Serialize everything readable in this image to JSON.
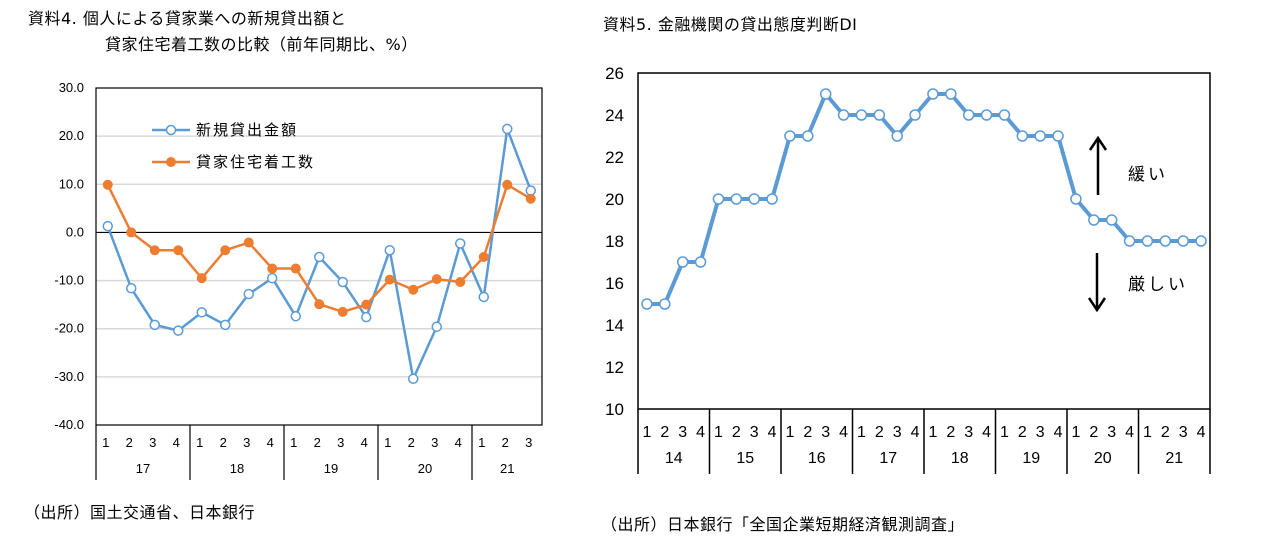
{
  "left_panel": {
    "title_line1": "資料4.  個人による貸家業への新規貸出額と",
    "title_line2": "貸家住宅着工数の比較（前年同期比、%）",
    "source": "（出所）国土交通省、日本銀行"
  },
  "right_panel": {
    "title": "資料5.  金融機関の貸出態度判断DI",
    "source": "（出所）日本銀行「全国企業短期経済観測調査」",
    "annotation_up": "緩い",
    "annotation_down": "厳しい"
  },
  "chart_data": [
    {
      "type": "line",
      "title": "個人による貸家業への新規貸出額と貸家住宅着工数の比較（前年同期比、%）",
      "xlabel": "",
      "ylabel": "",
      "ylim": [
        -40,
        30
      ],
      "yticks": [
        "30.0",
        "20.0",
        "10.0",
        "0.0",
        "-10.0",
        "-20.0",
        "-30.0",
        "-40.0"
      ],
      "grid": true,
      "legend_position": "upper-left inside",
      "years": [
        "17",
        "18",
        "19",
        "20",
        "21"
      ],
      "categories": [
        "17Q1",
        "17Q2",
        "17Q3",
        "17Q4",
        "18Q1",
        "18Q2",
        "18Q3",
        "18Q4",
        "19Q1",
        "19Q2",
        "19Q3",
        "19Q4",
        "20Q1",
        "20Q2",
        "20Q3",
        "20Q4",
        "21Q1",
        "21Q2",
        "21Q3"
      ],
      "quarter_labels": [
        "1",
        "2",
        "3",
        "4",
        "1",
        "2",
        "3",
        "4",
        "1",
        "2",
        "3",
        "4",
        "1",
        "2",
        "3",
        "4",
        "1",
        "2",
        "3"
      ],
      "series": [
        {
          "name": "新規貸出金額",
          "color": "#5B9BD5",
          "marker": "open-circle",
          "values": [
            1.3,
            -11.6,
            -19.2,
            -20.4,
            -16.6,
            -19.2,
            -12.8,
            -9.5,
            -17.4,
            -5.1,
            -10.3,
            -17.6,
            -3.7,
            -30.4,
            -19.6,
            -2.3,
            -13.4,
            21.5,
            8.7
          ]
        },
        {
          "name": "貸家住宅着工数",
          "color": "#ED7D31",
          "marker": "filled-circle",
          "values": [
            9.9,
            0.0,
            -3.7,
            -3.7,
            -9.5,
            -3.7,
            -2.1,
            -7.5,
            -7.5,
            -14.9,
            -16.5,
            -15.0,
            -9.8,
            -11.9,
            -9.7,
            -10.3,
            -5.1,
            9.9,
            7.0
          ]
        }
      ]
    },
    {
      "type": "line",
      "title": "金融機関の貸出態度判断DI",
      "xlabel": "",
      "ylabel": "",
      "ylim": [
        10,
        26
      ],
      "yticks": [
        "26",
        "24",
        "22",
        "20",
        "18",
        "16",
        "14",
        "12",
        "10"
      ],
      "grid": false,
      "annotations": [
        "↑ 緩い",
        "↓ 厳しい"
      ],
      "years": [
        "14",
        "15",
        "16",
        "17",
        "18",
        "19",
        "20",
        "21"
      ],
      "categories": [
        "14Q1",
        "14Q2",
        "14Q3",
        "14Q4",
        "15Q1",
        "15Q2",
        "15Q3",
        "15Q4",
        "16Q1",
        "16Q2",
        "16Q3",
        "16Q4",
        "17Q1",
        "17Q2",
        "17Q3",
        "17Q4",
        "18Q1",
        "18Q2",
        "18Q3",
        "18Q4",
        "19Q1",
        "19Q2",
        "19Q3",
        "19Q4",
        "20Q1",
        "20Q2",
        "20Q3",
        "20Q4",
        "21Q1",
        "21Q2",
        "21Q3",
        "21Q4"
      ],
      "quarter_labels": [
        "1",
        "2",
        "3",
        "4",
        "1",
        "2",
        "3",
        "4",
        "1",
        "2",
        "3",
        "4",
        "1",
        "2",
        "3",
        "4",
        "1",
        "2",
        "3",
        "4",
        "1",
        "2",
        "3",
        "4",
        "1",
        "2",
        "3",
        "4",
        "1",
        "2",
        "3",
        "4"
      ],
      "series": [
        {
          "name": "貸出態度判断DI",
          "color": "#5B9BD5",
          "marker": "open-circle",
          "values": [
            15,
            15,
            17,
            17,
            20,
            20,
            20,
            20,
            23,
            23,
            25,
            24,
            24,
            24,
            23,
            24,
            25,
            25,
            24,
            24,
            24,
            23,
            23,
            23,
            20,
            19,
            19,
            18,
            18,
            18,
            18,
            18
          ]
        }
      ]
    }
  ]
}
